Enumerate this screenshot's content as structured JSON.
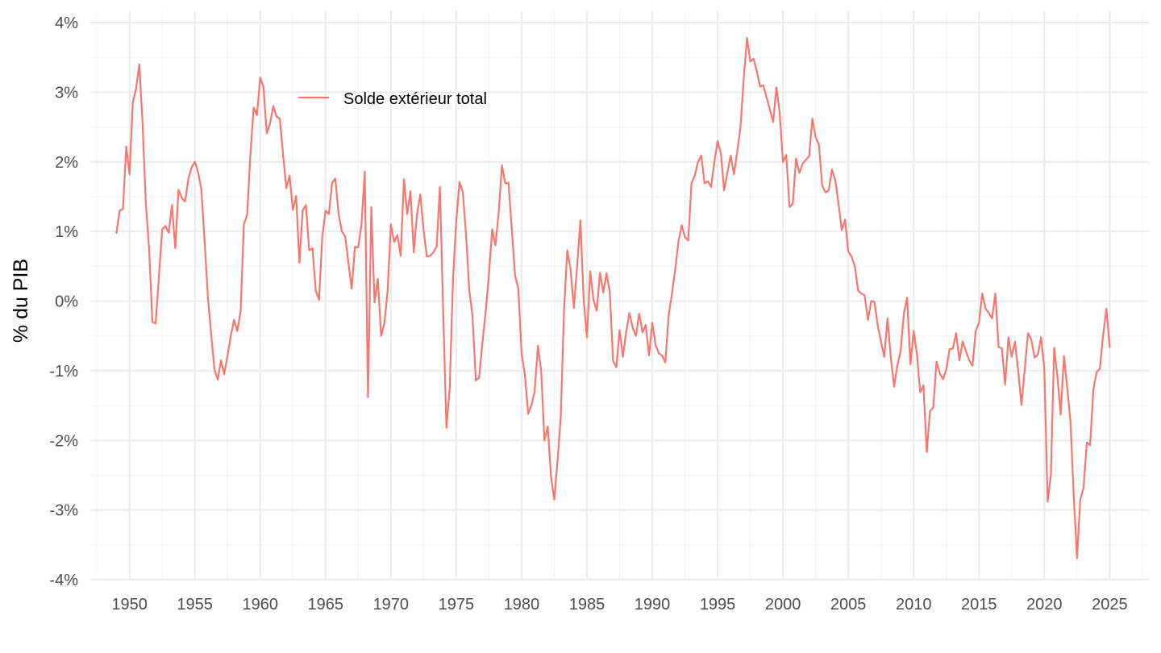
{
  "chart_data": {
    "type": "line",
    "title": "",
    "xlabel": "",
    "ylabel": "% du PIB",
    "xlim": [
      1947,
      2028
    ],
    "ylim": [
      -4,
      4
    ],
    "x_ticks": [
      1950,
      1955,
      1960,
      1965,
      1970,
      1975,
      1980,
      1985,
      1990,
      1995,
      2000,
      2005,
      2010,
      2015,
      2020,
      2025
    ],
    "x_tick_labels": [
      "1950",
      "1955",
      "1960",
      "1965",
      "1970",
      "1975",
      "1980",
      "1985",
      "1990",
      "1995",
      "2000",
      "2005",
      "2010",
      "2015",
      "2020",
      "2025"
    ],
    "y_ticks": [
      4,
      3,
      2,
      1,
      0,
      -1,
      -2,
      -3,
      -4
    ],
    "y_tick_labels": [
      "4%",
      "3%",
      "2%",
      "1%",
      "0%",
      "-1%",
      "-2%",
      "-3%",
      "-4%"
    ],
    "grid": true,
    "legend_position": "top-left inside plot",
    "series": [
      {
        "name": "Solde extérieur total",
        "color": "#f8766d",
        "x": [
          1949.0,
          1949.25,
          1949.5,
          1949.75,
          1950.0,
          1950.25,
          1950.5,
          1950.75,
          1951.0,
          1951.25,
          1951.5,
          1951.75,
          1952.0,
          1952.25,
          1952.5,
          1952.75,
          1953.0,
          1953.25,
          1953.5,
          1953.75,
          1954.0,
          1954.25,
          1954.5,
          1954.75,
          1955.0,
          1955.25,
          1955.5,
          1955.75,
          1956.0,
          1956.25,
          1956.5,
          1956.75,
          1957.0,
          1957.25,
          1957.5,
          1957.75,
          1958.0,
          1958.25,
          1958.5,
          1958.75,
          1959.0,
          1959.25,
          1959.5,
          1959.75,
          1960.0,
          1960.25,
          1960.5,
          1960.75,
          1961.0,
          1961.25,
          1961.5,
          1961.75,
          1962.0,
          1962.25,
          1962.5,
          1962.75,
          1963.0,
          1963.25,
          1963.5,
          1963.75,
          1964.0,
          1964.25,
          1964.5,
          1964.75,
          1965.0,
          1965.25,
          1965.5,
          1965.75,
          1966.0,
          1966.25,
          1966.5,
          1966.75,
          1967.0,
          1967.25,
          1967.5,
          1967.75,
          1968.0,
          1968.25,
          1968.5,
          1968.75,
          1969.0,
          1969.25,
          1969.5,
          1969.75,
          1970.0,
          1970.25,
          1970.5,
          1970.75,
          1971.0,
          1971.25,
          1971.5,
          1971.75,
          1972.0,
          1972.25,
          1972.5,
          1972.75,
          1973.0,
          1973.25,
          1973.5,
          1973.75,
          1974.0,
          1974.25,
          1974.5,
          1974.75,
          1975.0,
          1975.25,
          1975.5,
          1975.75,
          1976.0,
          1976.25,
          1976.5,
          1976.75,
          1977.0,
          1977.25,
          1977.5,
          1977.75,
          1978.0,
          1978.25,
          1978.5,
          1978.75,
          1979.0,
          1979.25,
          1979.5,
          1979.75,
          1980.0,
          1980.25,
          1980.5,
          1980.75,
          1981.0,
          1981.25,
          1981.5,
          1981.75,
          1982.0,
          1982.25,
          1982.5,
          1982.75,
          1983.0,
          1983.25,
          1983.5,
          1983.75,
          1984.0,
          1984.25,
          1984.5,
          1984.75,
          1985.0,
          1985.25,
          1985.5,
          1985.75,
          1986.0,
          1986.25,
          1986.5,
          1986.75,
          1987.0,
          1987.25,
          1987.5,
          1987.75,
          1988.0,
          1988.25,
          1988.5,
          1988.75,
          1989.0,
          1989.25,
          1989.5,
          1989.75,
          1990.0,
          1990.25,
          1990.5,
          1990.75,
          1991.0,
          1991.25,
          1991.5,
          1991.75,
          1992.0,
          1992.25,
          1992.5,
          1992.75,
          1993.0,
          1993.25,
          1993.5,
          1993.75,
          1994.0,
          1994.25,
          1994.5,
          1994.75,
          1995.0,
          1995.25,
          1995.5,
          1995.75,
          1996.0,
          1996.25,
          1996.5,
          1996.75,
          1997.0,
          1997.25,
          1997.5,
          1997.75,
          1998.0,
          1998.25,
          1998.5,
          1998.75,
          1999.0,
          1999.25,
          1999.5,
          1999.75,
          2000.0,
          2000.25,
          2000.5,
          2000.75,
          2001.0,
          2001.25,
          2001.5,
          2001.75,
          2002.0,
          2002.25,
          2002.5,
          2002.75,
          2003.0,
          2003.25,
          2003.5,
          2003.75,
          2004.0,
          2004.25,
          2004.5,
          2004.75,
          2005.0,
          2005.25,
          2005.5,
          2005.75,
          2006.0,
          2006.25,
          2006.5,
          2006.75,
          2007.0,
          2007.25,
          2007.5,
          2007.75,
          2008.0,
          2008.25,
          2008.5,
          2008.75,
          2009.0,
          2009.25,
          2009.5,
          2009.75,
          2010.0,
          2010.25,
          2010.5,
          2010.75,
          2011.0,
          2011.25,
          2011.5,
          2011.75,
          2012.0,
          2012.25,
          2012.5,
          2012.75,
          2013.0,
          2013.25,
          2013.5,
          2013.75,
          2014.0,
          2014.25,
          2014.5,
          2014.75,
          2015.0,
          2015.25,
          2015.5,
          2015.75,
          2016.0,
          2016.25,
          2016.5,
          2016.75,
          2017.0,
          2017.25,
          2017.5,
          2017.75,
          2018.0,
          2018.25,
          2018.5,
          2018.75,
          2019.0,
          2019.25,
          2019.5,
          2019.75,
          2020.0,
          2020.25,
          2020.5,
          2020.75,
          2021.0,
          2021.25,
          2021.5,
          2021.75,
          2022.0,
          2022.25,
          2022.5,
          2022.75,
          2023.0,
          2023.25,
          2023.5,
          2023.75,
          2024.0,
          2024.25,
          2024.5,
          2024.75,
          2025.0
        ],
        "y": [
          0.98,
          1.3,
          1.32,
          2.22,
          1.82,
          2.85,
          3.05,
          3.4,
          2.55,
          1.4,
          0.75,
          -0.3,
          -0.32,
          0.35,
          1.03,
          1.08,
          0.98,
          1.38,
          0.76,
          1.6,
          1.48,
          1.43,
          1.75,
          1.92,
          2.0,
          1.85,
          1.6,
          0.85,
          0.05,
          -0.48,
          -0.98,
          -1.13,
          -0.85,
          -1.05,
          -0.78,
          -0.5,
          -0.27,
          -0.43,
          -0.15,
          1.1,
          1.24,
          2.1,
          2.78,
          2.67,
          3.21,
          3.08,
          2.41,
          2.55,
          2.8,
          2.65,
          2.62,
          2.1,
          1.62,
          1.8,
          1.31,
          1.51,
          0.55,
          1.3,
          1.38,
          0.73,
          0.76,
          0.15,
          0.02,
          0.92,
          1.3,
          1.25,
          1.7,
          1.76,
          1.25,
          1.0,
          0.93,
          0.55,
          0.18,
          0.78,
          0.77,
          1.1,
          1.86,
          -1.38,
          1.35,
          -0.02,
          0.32,
          -0.5,
          -0.32,
          0.15,
          1.1,
          0.85,
          0.95,
          0.65,
          1.75,
          1.25,
          1.58,
          0.7,
          1.25,
          1.53,
          1.02,
          0.64,
          0.65,
          0.7,
          0.78,
          1.64,
          -0.15,
          -1.82,
          -1.25,
          0.3,
          1.15,
          1.71,
          1.57,
          0.96,
          0.15,
          -0.22,
          -1.14,
          -1.1,
          -0.6,
          -0.16,
          0.38,
          1.03,
          0.8,
          1.28,
          1.95,
          1.69,
          1.7,
          1.03,
          0.37,
          0.18,
          -0.75,
          -1.05,
          -1.62,
          -1.5,
          -1.3,
          -0.64,
          -1.0,
          -2.0,
          -1.8,
          -2.52,
          -2.85,
          -2.3,
          -1.65,
          -0.12,
          0.73,
          0.45,
          -0.1,
          0.5,
          1.16,
          0.02,
          -0.52,
          0.43,
          0.02,
          -0.14,
          0.41,
          0.12,
          0.4,
          0.13,
          -0.86,
          -0.95,
          -0.42,
          -0.8,
          -0.45,
          -0.17,
          -0.38,
          -0.5,
          -0.18,
          -0.45,
          -0.34,
          -0.78,
          -0.31,
          -0.63,
          -0.75,
          -0.78,
          -0.88,
          -0.21,
          0.1,
          0.45,
          0.85,
          1.09,
          0.92,
          0.87,
          1.69,
          1.8,
          2.0,
          2.09,
          1.69,
          1.72,
          1.64,
          2.0,
          2.3,
          2.12,
          1.59,
          1.85,
          2.09,
          1.82,
          2.15,
          2.5,
          3.2,
          3.78,
          3.44,
          3.48,
          3.3,
          3.08,
          3.1,
          2.92,
          2.75,
          2.57,
          3.07,
          2.7,
          2.0,
          2.1,
          1.35,
          1.4,
          2.05,
          1.84,
          1.97,
          2.03,
          2.08,
          2.62,
          2.35,
          2.25,
          1.66,
          1.56,
          1.59,
          1.89,
          1.74,
          1.4,
          1.02,
          1.17,
          0.71,
          0.64,
          0.5,
          0.15,
          0.11,
          0.08,
          -0.27,
          0.0,
          -0.01,
          -0.35,
          -0.58,
          -0.8,
          -0.25,
          -0.8,
          -1.23,
          -0.93,
          -0.72,
          -0.18,
          0.05,
          -0.91,
          -0.43,
          -0.76,
          -1.31,
          -1.21,
          -2.17,
          -1.58,
          -1.53,
          -0.87,
          -1.04,
          -1.12,
          -0.98,
          -0.69,
          -0.68,
          -0.46,
          -0.85,
          -0.58,
          -0.72,
          -0.85,
          -0.93,
          -0.43,
          -0.31,
          0.11,
          -0.11,
          -0.17,
          -0.25,
          0.11,
          -0.66,
          -0.68,
          -1.2,
          -0.52,
          -0.8,
          -0.58,
          -1.0,
          -1.49,
          -0.98,
          -0.46,
          -0.55,
          -0.81,
          -0.77,
          -0.52,
          -0.98,
          -2.88,
          -2.5,
          -0.67,
          -1.08,
          -1.63,
          -0.79,
          -1.24,
          -1.73,
          -2.8,
          -3.69,
          -2.85,
          -2.68,
          -2.03,
          -2.07,
          -1.27,
          -1.02,
          -0.97,
          -0.48,
          -0.11,
          -0.66
        ]
      }
    ]
  }
}
